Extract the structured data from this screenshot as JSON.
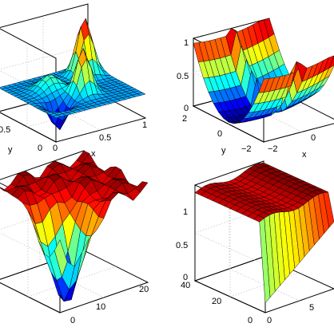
{
  "chart_data": [
    {
      "type": "surface",
      "panel": "top-left",
      "xlabel": "x",
      "ylabel": "y",
      "zlabel": "",
      "x_ticks": [
        "0",
        "0.5",
        "1"
      ],
      "y_ticks": [
        "0",
        "0.5"
      ],
      "z_ticks": [],
      "xlim": [
        0,
        1
      ],
      "ylim": [
        0,
        1
      ],
      "zlim": [
        -0.4,
        1
      ],
      "colormap": "jet",
      "surface": "two positive peaks near (0.8, 0.8) and (0.55, 0.4) with a negative dip near (0.25, 0.3) over a flat plane"
    },
    {
      "type": "surface",
      "panel": "top-right",
      "xlabel": "x",
      "ylabel": "y",
      "zlabel": "",
      "x_ticks": [
        "−2",
        "0"
      ],
      "y_ticks": [
        "2",
        "0",
        "−2"
      ],
      "z_ticks": [
        "0",
        "0.5",
        "1"
      ],
      "xlim": [
        -2,
        2
      ],
      "ylim": [
        -2,
        2
      ],
      "zlim": [
        0,
        1
      ],
      "colormap": "jet",
      "surface": "curved sheet rising toward the back corner with a ridge fold"
    },
    {
      "type": "surface",
      "panel": "bottom-left",
      "xlabel": "",
      "ylabel": "",
      "zlabel": "",
      "x_ticks": [
        "0",
        "10",
        "20"
      ],
      "y_ticks": [],
      "z_ticks": [],
      "xlim": [
        0,
        20
      ],
      "ylim": [
        0,
        20
      ],
      "zlim": [
        0,
        1
      ],
      "colormap": "jet",
      "surface": "high plateau with a deep irregular valley near the front"
    },
    {
      "type": "surface",
      "panel": "bottom-right",
      "xlabel": "",
      "ylabel": "",
      "zlabel": "",
      "x_ticks": [
        "0",
        "5"
      ],
      "y_ticks": [
        "40",
        "20",
        "0"
      ],
      "z_ticks": [
        "0",
        "0.5",
        "1"
      ],
      "xlim": [
        0,
        10
      ],
      "ylim": [
        0,
        40
      ],
      "zlim": [
        0,
        1
      ],
      "colormap": "jet",
      "surface": "flat plateau at 1 with a sharp drop to 0 along the front edge"
    }
  ]
}
